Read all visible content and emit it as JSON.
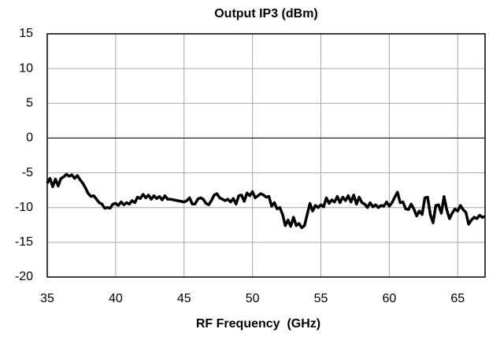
{
  "chart_data": {
    "type": "line",
    "title": "Output IP3 (dBm)",
    "x_label": "RF Frequency  (GHz)",
    "x": [
      35.0,
      35.2,
      35.4,
      35.6,
      35.8,
      36.0,
      36.2,
      36.4,
      36.6,
      36.8,
      37.0,
      37.2,
      37.4,
      37.6,
      37.8,
      38.0,
      38.2,
      38.4,
      38.6,
      38.8,
      39.0,
      39.2,
      39.4,
      39.6,
      39.8,
      40.0,
      40.2,
      40.4,
      40.6,
      40.8,
      41.0,
      41.2,
      41.4,
      41.6,
      41.8,
      42.0,
      42.2,
      42.4,
      42.6,
      42.8,
      43.0,
      43.2,
      43.4,
      43.6,
      43.8,
      44.0,
      44.5,
      45.0,
      45.2,
      45.4,
      45.6,
      45.8,
      46.0,
      46.2,
      46.4,
      46.6,
      46.8,
      47.0,
      47.2,
      47.4,
      47.6,
      47.8,
      48.0,
      48.2,
      48.4,
      48.6,
      48.8,
      49.0,
      49.2,
      49.4,
      49.6,
      49.8,
      50.0,
      50.2,
      50.4,
      50.6,
      50.8,
      51.0,
      51.2,
      51.4,
      51.6,
      51.8,
      52.0,
      52.2,
      52.4,
      52.6,
      52.8,
      53.0,
      53.2,
      53.4,
      53.6,
      53.8,
      54.0,
      54.2,
      54.4,
      54.6,
      54.8,
      55.0,
      55.2,
      55.4,
      55.6,
      55.8,
      56.0,
      56.2,
      56.4,
      56.6,
      56.8,
      57.0,
      57.2,
      57.4,
      57.6,
      57.8,
      58.0,
      58.2,
      58.4,
      58.6,
      58.8,
      59.0,
      59.2,
      59.4,
      59.6,
      59.8,
      60.0,
      60.2,
      60.4,
      60.6,
      60.8,
      61.0,
      61.2,
      61.4,
      61.6,
      61.8,
      62.0,
      62.2,
      62.4,
      62.6,
      62.8,
      63.0,
      63.2,
      63.4,
      63.6,
      63.8,
      64.0,
      64.2,
      64.4,
      64.6,
      64.8,
      65.0,
      65.2,
      65.4,
      65.6,
      65.8,
      66.0,
      66.2,
      66.4,
      66.6,
      66.8,
      67.0
    ],
    "values": [
      -6.5,
      -5.8,
      -7,
      -5.9,
      -6.9,
      -5.8,
      -5.6,
      -5.2,
      -5.5,
      -5.3,
      -5.8,
      -5.4,
      -6.0,
      -6.5,
      -7.2,
      -8.0,
      -8.4,
      -8.3,
      -8.8,
      -9.3,
      -9.5,
      -10.1,
      -10.0,
      -10.1,
      -9.5,
      -9.4,
      -9.7,
      -9.2,
      -9.6,
      -9.3,
      -9.5,
      -9.0,
      -9.3,
      -8.5,
      -8.7,
      -8.1,
      -8.6,
      -8.2,
      -8.8,
      -8.3,
      -8.7,
      -8.4,
      -8.9,
      -8.3,
      -8.8,
      -8.8,
      -9.0,
      -9.2,
      -9.0,
      -8.6,
      -9.5,
      -9.5,
      -8.8,
      -8.6,
      -8.8,
      -9.4,
      -9.6,
      -9.0,
      -8.2,
      -8.0,
      -8.6,
      -8.8,
      -9.0,
      -8.8,
      -9.2,
      -8.7,
      -9.5,
      -8.3,
      -8.2,
      -9.1,
      -7.9,
      -8.3,
      -7.7,
      -8.6,
      -8.3,
      -8.0,
      -8.2,
      -8.5,
      -8.4,
      -9.8,
      -9.3,
      -10.2,
      -10.0,
      -11.0,
      -12.6,
      -11.8,
      -12.7,
      -11.4,
      -12.6,
      -12.3,
      -12.9,
      -12.6,
      -11.0,
      -9.4,
      -10.5,
      -9.7,
      -10.0,
      -9.6,
      -9.9,
      -8.6,
      -9.4,
      -8.9,
      -9.2,
      -8.4,
      -9.3,
      -8.5,
      -9.0,
      -8.3,
      -9.2,
      -8.2,
      -9.5,
      -8.5,
      -9.3,
      -9.5,
      -10.0,
      -9.3,
      -9.9,
      -9.6,
      -10.0,
      -9.7,
      -9.8,
      -9.2,
      -9.8,
      -9.3,
      -8.5,
      -7.8,
      -9.3,
      -9.2,
      -10.2,
      -10.3,
      -9.5,
      -10.2,
      -11.2,
      -10.5,
      -11.0,
      -8.6,
      -8.5,
      -11.0,
      -12.2,
      -9.7,
      -9.6,
      -10.8,
      -8.4,
      -10.3,
      -11.6,
      -10.8,
      -10.2,
      -10.5,
      -9.7,
      -10.3,
      -10.7,
      -12.4,
      -11.8,
      -11.4,
      -11.6,
      -11.1,
      -11.4,
      -11.3
    ],
    "color": "#000000",
    "xlim": [
      35,
      67
    ],
    "xticks": [
      35,
      40,
      45,
      50,
      55,
      60,
      65
    ],
    "ylim": [
      -20,
      15
    ],
    "yticks": [
      -20,
      -15,
      -10,
      -5,
      0,
      5,
      10,
      15
    ],
    "grid": true
  }
}
